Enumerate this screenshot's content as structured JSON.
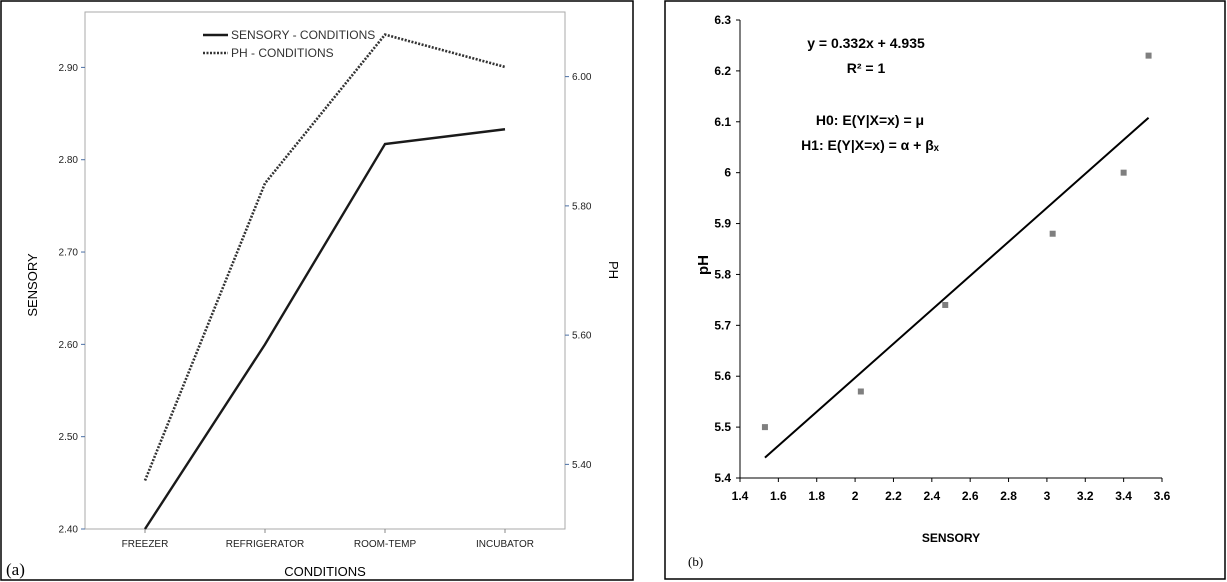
{
  "panel_a": {
    "label": "(a)",
    "chart_data": {
      "type": "line",
      "categories": [
        "FREEZER",
        "REFRIGERATOR",
        "ROOM-TEMP",
        "INCUBATOR"
      ],
      "xlabel": "CONDITIONS",
      "ylabel_left": "SENSORY",
      "ylabel_right": "PH",
      "ylim_left": [
        2.4,
        2.96
      ],
      "ylim_right": [
        5.3,
        6.1
      ],
      "yticks_left": [
        "2.40",
        "2.50",
        "2.60",
        "2.70",
        "2.80",
        "2.90"
      ],
      "yticks_right": [
        "5.40",
        "5.60",
        "5.80",
        "6.00"
      ],
      "legend_position": "top",
      "grid": false,
      "series": [
        {
          "name": "SENSORY - CONDITIONS",
          "axis": "left",
          "style": "solid",
          "values": [
            2.4,
            2.6,
            2.817,
            2.833
          ]
        },
        {
          "name": "PH - CONDITIONS",
          "axis": "right",
          "style": "dotted",
          "values": [
            5.375,
            5.835,
            6.065,
            6.015
          ]
        }
      ]
    }
  },
  "panel_b": {
    "label": "(b)",
    "chart_data": {
      "type": "scatter",
      "xlabel": "SENSORY",
      "ylabel": "pH",
      "xlim": [
        1.4,
        3.6
      ],
      "ylim": [
        5.4,
        6.3
      ],
      "xticks": [
        "1.4",
        "1.6",
        "1.8",
        "2",
        "2.2",
        "2.4",
        "2.6",
        "2.8",
        "3",
        "3.2",
        "3.4",
        "3.6"
      ],
      "yticks": [
        "5.4",
        "5.5",
        "5.6",
        "5.7",
        "5.8",
        "5.9",
        "6",
        "6.1",
        "6.2",
        "6.3"
      ],
      "grid": false,
      "points": [
        {
          "x": 1.53,
          "y": 5.5
        },
        {
          "x": 2.03,
          "y": 5.57
        },
        {
          "x": 2.47,
          "y": 5.74
        },
        {
          "x": 3.03,
          "y": 5.88
        },
        {
          "x": 3.4,
          "y": 6.0
        },
        {
          "x": 3.53,
          "y": 6.23
        }
      ],
      "trendline": {
        "x_start": 1.53,
        "x_end": 3.53,
        "y_start": 5.44,
        "y_end": 6.108
      },
      "annotations": [
        "y = 0.332x + 4.935",
        "R² = 1",
        "H0: E(Y|X=x) = μ",
        "H1: E(Y|X=x) = α + βₓ"
      ]
    }
  }
}
